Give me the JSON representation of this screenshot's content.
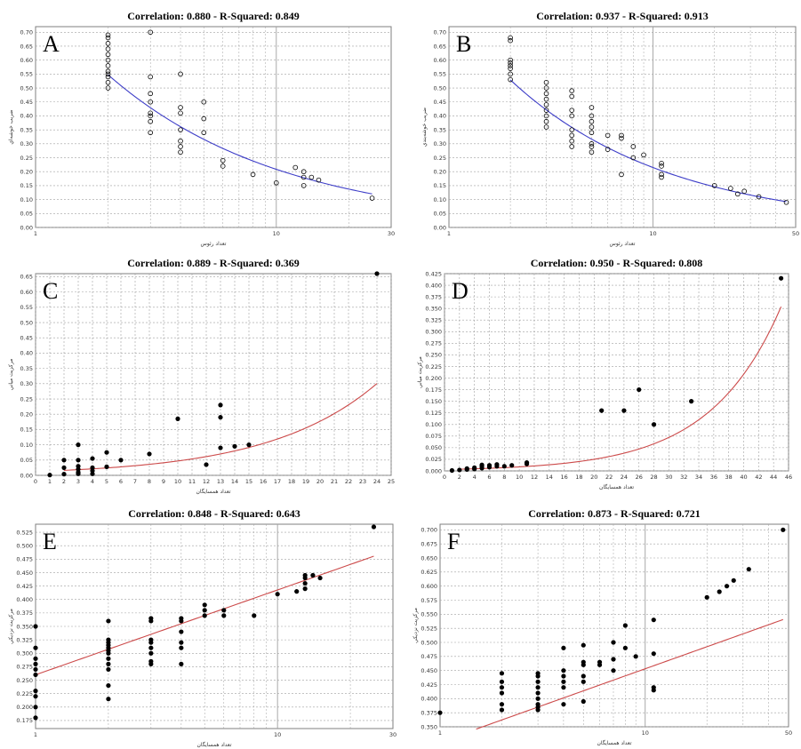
{
  "colors": {
    "fit_blue": "#3d3dc8",
    "fit_red": "#cc4a4a",
    "grid": "#a0a0a0",
    "marker": "#000000"
  },
  "chart_data": [
    {
      "panel": "A",
      "type": "scatter",
      "marker": "open",
      "fit_color": "#3d3dc8",
      "title": "Correlation: 0.880   -   R-Squared: 0.849",
      "xlabel": "تعداد رئوس",
      "ylabel": "ضريب خوشه‌اي",
      "xscale": "log",
      "xlim": [
        1,
        30
      ],
      "xticks": [
        1,
        10,
        30
      ],
      "ylim": [
        0,
        0.72
      ],
      "yticks": [
        0,
        0.05,
        0.1,
        0.15,
        0.2,
        0.25,
        0.3,
        0.35,
        0.4,
        0.45,
        0.5,
        0.55,
        0.6,
        0.65,
        0.7
      ],
      "ytick_decimals": 2,
      "points": [
        [
          2,
          0.5
        ],
        [
          2,
          0.52
        ],
        [
          2,
          0.54
        ],
        [
          2,
          0.55
        ],
        [
          2,
          0.56
        ],
        [
          2,
          0.58
        ],
        [
          2,
          0.6
        ],
        [
          2,
          0.62
        ],
        [
          2,
          0.64
        ],
        [
          2,
          0.66
        ],
        [
          2,
          0.68
        ],
        [
          2,
          0.69
        ],
        [
          3,
          0.7
        ],
        [
          3,
          0.54
        ],
        [
          3,
          0.48
        ],
        [
          3,
          0.45
        ],
        [
          3,
          0.41
        ],
        [
          3,
          0.4
        ],
        [
          3,
          0.38
        ],
        [
          3,
          0.34
        ],
        [
          4,
          0.55
        ],
        [
          4,
          0.43
        ],
        [
          4,
          0.41
        ],
        [
          4,
          0.35
        ],
        [
          4,
          0.31
        ],
        [
          4,
          0.29
        ],
        [
          4,
          0.27
        ],
        [
          5,
          0.45
        ],
        [
          5,
          0.39
        ],
        [
          5,
          0.34
        ],
        [
          6,
          0.24
        ],
        [
          6,
          0.22
        ],
        [
          8,
          0.19
        ],
        [
          10,
          0.16
        ],
        [
          12,
          0.215
        ],
        [
          13,
          0.2
        ],
        [
          13,
          0.18
        ],
        [
          13,
          0.15
        ],
        [
          14,
          0.18
        ],
        [
          15,
          0.17
        ],
        [
          25,
          0.105
        ]
      ],
      "fit": {
        "kind": "power",
        "a": 0.83,
        "b": -0.6,
        "x_from": 2,
        "x_to": 25
      }
    },
    {
      "panel": "B",
      "type": "scatter",
      "marker": "open",
      "fit_color": "#3d3dc8",
      "title": "Correlation: 0.937   -   R-Squared: 0.913",
      "xlabel": "تعداد رئوس",
      "ylabel": "ضريب خوشه‌بندي",
      "xscale": "log",
      "xlim": [
        1,
        50
      ],
      "xticks": [
        1,
        10,
        50
      ],
      "ylim": [
        0,
        0.72
      ],
      "yticks": [
        0,
        0.05,
        0.1,
        0.15,
        0.2,
        0.25,
        0.3,
        0.35,
        0.4,
        0.45,
        0.5,
        0.55,
        0.6,
        0.65,
        0.7
      ],
      "ytick_decimals": 2,
      "points": [
        [
          2,
          0.53
        ],
        [
          2,
          0.55
        ],
        [
          2,
          0.57
        ],
        [
          2,
          0.58
        ],
        [
          2,
          0.59
        ],
        [
          2,
          0.6
        ],
        [
          2,
          0.67
        ],
        [
          2,
          0.68
        ],
        [
          3,
          0.36
        ],
        [
          3,
          0.38
        ],
        [
          3,
          0.4
        ],
        [
          3,
          0.42
        ],
        [
          3,
          0.44
        ],
        [
          3,
          0.46
        ],
        [
          3,
          0.48
        ],
        [
          3,
          0.5
        ],
        [
          3,
          0.52
        ],
        [
          4,
          0.29
        ],
        [
          4,
          0.31
        ],
        [
          4,
          0.33
        ],
        [
          4,
          0.35
        ],
        [
          4,
          0.4
        ],
        [
          4,
          0.42
        ],
        [
          4,
          0.47
        ],
        [
          4,
          0.49
        ],
        [
          5,
          0.27
        ],
        [
          5,
          0.29
        ],
        [
          5,
          0.3
        ],
        [
          5,
          0.34
        ],
        [
          5,
          0.36
        ],
        [
          5,
          0.38
        ],
        [
          5,
          0.4
        ],
        [
          5,
          0.43
        ],
        [
          6,
          0.28
        ],
        [
          6,
          0.33
        ],
        [
          7,
          0.32
        ],
        [
          7,
          0.33
        ],
        [
          7,
          0.19
        ],
        [
          8,
          0.29
        ],
        [
          8,
          0.25
        ],
        [
          9,
          0.26
        ],
        [
          11,
          0.23
        ],
        [
          11,
          0.22
        ],
        [
          11,
          0.19
        ],
        [
          11,
          0.18
        ],
        [
          20,
          0.15
        ],
        [
          24,
          0.14
        ],
        [
          26,
          0.12
        ],
        [
          28,
          0.13
        ],
        [
          33,
          0.11
        ],
        [
          45,
          0.09
        ]
      ],
      "fit": {
        "kind": "power",
        "a": 0.78,
        "b": -0.56,
        "x_from": 2,
        "x_to": 45
      }
    },
    {
      "panel": "C",
      "type": "scatter",
      "marker": "filled",
      "fit_color": "#cc4a4a",
      "title": "Correlation: 0.889   -   R-Squared: 0.369",
      "xlabel": "تعداد همسايگان",
      "ylabel": "مرکزيت مياني",
      "xscale": "linear",
      "xlim": [
        0,
        25
      ],
      "xticks": [
        0,
        1,
        2,
        3,
        4,
        5,
        6,
        7,
        8,
        9,
        10,
        11,
        12,
        13,
        14,
        15,
        16,
        17,
        18,
        19,
        20,
        21,
        22,
        23,
        24,
        25
      ],
      "ylim": [
        0,
        0.66
      ],
      "yticks": [
        0,
        0.05,
        0.1,
        0.15,
        0.2,
        0.25,
        0.3,
        0.35,
        0.4,
        0.45,
        0.5,
        0.55,
        0.6,
        0.65
      ],
      "ytick_decimals": 2,
      "points": [
        [
          1,
          0.001
        ],
        [
          2,
          0.004
        ],
        [
          2,
          0.025
        ],
        [
          2,
          0.05
        ],
        [
          3,
          0.005
        ],
        [
          3,
          0.01
        ],
        [
          3,
          0.02
        ],
        [
          3,
          0.03
        ],
        [
          3,
          0.05
        ],
        [
          3,
          0.1
        ],
        [
          4,
          0.005
        ],
        [
          4,
          0.015
        ],
        [
          4,
          0.025
        ],
        [
          4,
          0.055
        ],
        [
          5,
          0.028
        ],
        [
          5,
          0.075
        ],
        [
          6,
          0.05
        ],
        [
          8,
          0.07
        ],
        [
          10,
          0.185
        ],
        [
          12,
          0.035
        ],
        [
          13,
          0.09
        ],
        [
          13,
          0.19
        ],
        [
          13,
          0.23
        ],
        [
          14,
          0.095
        ],
        [
          15,
          0.1
        ],
        [
          24,
          0.66
        ]
      ],
      "fit": {
        "kind": "exp",
        "a": 0.0125,
        "b": 0.1325,
        "x_from": 2,
        "x_to": 24
      }
    },
    {
      "panel": "D",
      "type": "scatter",
      "marker": "filled",
      "fit_color": "#cc4a4a",
      "title": "Correlation: 0.950   -   R-Squared: 0.808",
      "xlabel": "تعداد همسايگان",
      "ylabel": "مرکزيت مياني",
      "xscale": "linear",
      "xlim": [
        0,
        46
      ],
      "xticks": [
        0,
        2,
        4,
        6,
        8,
        10,
        12,
        14,
        16,
        18,
        20,
        22,
        24,
        26,
        28,
        30,
        32,
        34,
        36,
        38,
        40,
        42,
        44,
        46
      ],
      "ylim": [
        0,
        0.425
      ],
      "yticks": [
        0,
        0.025,
        0.05,
        0.075,
        0.1,
        0.125,
        0.15,
        0.175,
        0.2,
        0.225,
        0.25,
        0.275,
        0.3,
        0.325,
        0.35,
        0.375,
        0.4,
        0.425
      ],
      "ytick_decimals": 3,
      "points": [
        [
          1,
          0.001
        ],
        [
          2,
          0.002
        ],
        [
          3,
          0.003
        ],
        [
          3,
          0.005
        ],
        [
          4,
          0.004
        ],
        [
          4,
          0.007
        ],
        [
          5,
          0.006
        ],
        [
          5,
          0.01
        ],
        [
          5,
          0.013
        ],
        [
          6,
          0.008
        ],
        [
          6,
          0.012
        ],
        [
          7,
          0.01
        ],
        [
          7,
          0.014
        ],
        [
          8,
          0.01
        ],
        [
          9,
          0.012
        ],
        [
          11,
          0.015
        ],
        [
          11,
          0.018
        ],
        [
          21,
          0.13
        ],
        [
          24,
          0.13
        ],
        [
          26,
          0.175
        ],
        [
          28,
          0.1
        ],
        [
          33,
          0.15
        ],
        [
          45,
          0.415
        ]
      ],
      "fit": {
        "kind": "exp",
        "a": 0.003,
        "b": 0.106,
        "x_from": 2,
        "x_to": 45
      }
    },
    {
      "panel": "E",
      "type": "scatter",
      "marker": "filled",
      "fit_color": "#cc4a4a",
      "title": "Correlation: 0.848   -   R-Squared: 0.643",
      "xlabel": "تعداد همسايگان",
      "ylabel": "مرکزيت نزديکي",
      "xscale": "log",
      "xlim": [
        1,
        30
      ],
      "xticks": [
        1,
        10,
        30
      ],
      "ylim": [
        0.16,
        0.54
      ],
      "yticks": [
        0.175,
        0.2,
        0.225,
        0.25,
        0.275,
        0.3,
        0.325,
        0.35,
        0.375,
        0.4,
        0.425,
        0.45,
        0.475,
        0.5,
        0.525
      ],
      "ytick_decimals": 3,
      "points": [
        [
          1,
          0.18
        ],
        [
          1,
          0.2
        ],
        [
          1,
          0.22
        ],
        [
          1,
          0.23
        ],
        [
          1,
          0.26
        ],
        [
          1,
          0.27
        ],
        [
          1,
          0.28
        ],
        [
          1,
          0.29
        ],
        [
          1,
          0.31
        ],
        [
          1,
          0.35
        ],
        [
          2,
          0.215
        ],
        [
          2,
          0.24
        ],
        [
          2,
          0.27
        ],
        [
          2,
          0.28
        ],
        [
          2,
          0.29
        ],
        [
          2,
          0.3
        ],
        [
          2,
          0.305
        ],
        [
          2,
          0.31
        ],
        [
          2,
          0.315
        ],
        [
          2,
          0.32
        ],
        [
          2,
          0.325
        ],
        [
          2,
          0.36
        ],
        [
          3,
          0.28
        ],
        [
          3,
          0.285
        ],
        [
          3,
          0.3
        ],
        [
          3,
          0.31
        ],
        [
          3,
          0.32
        ],
        [
          3,
          0.325
        ],
        [
          3,
          0.36
        ],
        [
          3,
          0.365
        ],
        [
          4,
          0.28
        ],
        [
          4,
          0.31
        ],
        [
          4,
          0.32
        ],
        [
          4,
          0.34
        ],
        [
          4,
          0.36
        ],
        [
          4,
          0.365
        ],
        [
          5,
          0.37
        ],
        [
          5,
          0.38
        ],
        [
          5,
          0.39
        ],
        [
          6,
          0.37
        ],
        [
          6,
          0.38
        ],
        [
          8,
          0.37
        ],
        [
          10,
          0.41
        ],
        [
          12,
          0.415
        ],
        [
          13,
          0.42
        ],
        [
          13,
          0.43
        ],
        [
          13,
          0.44
        ],
        [
          13,
          0.445
        ],
        [
          14,
          0.445
        ],
        [
          15,
          0.44
        ],
        [
          25,
          0.535
        ]
      ],
      "fit": {
        "kind": "linlog",
        "a": 0.26,
        "b": 0.0685,
        "x_from": 1,
        "x_to": 25
      }
    },
    {
      "panel": "F",
      "type": "scatter",
      "marker": "filled",
      "fit_color": "#cc4a4a",
      "title": "Correlation: 0.873   -   R-Squared: 0.721",
      "xlabel": "تعداد همسايگان",
      "ylabel": "مرکزيت نزديکي",
      "xscale": "log",
      "xlim": [
        1,
        50
      ],
      "xticks": [
        1,
        10,
        50
      ],
      "ylim": [
        0.35,
        0.71
      ],
      "yticks": [
        0.35,
        0.375,
        0.4,
        0.425,
        0.45,
        0.475,
        0.5,
        0.525,
        0.55,
        0.575,
        0.6,
        0.625,
        0.65,
        0.675,
        0.7
      ],
      "ytick_decimals": 3,
      "points": [
        [
          1,
          0.375
        ],
        [
          2,
          0.38
        ],
        [
          2,
          0.39
        ],
        [
          2,
          0.41
        ],
        [
          2,
          0.42
        ],
        [
          2,
          0.43
        ],
        [
          2,
          0.445
        ],
        [
          3,
          0.38
        ],
        [
          3,
          0.385
        ],
        [
          3,
          0.39
        ],
        [
          3,
          0.4
        ],
        [
          3,
          0.41
        ],
        [
          3,
          0.42
        ],
        [
          3,
          0.43
        ],
        [
          3,
          0.44
        ],
        [
          3,
          0.445
        ],
        [
          4,
          0.39
        ],
        [
          4,
          0.42
        ],
        [
          4,
          0.43
        ],
        [
          4,
          0.44
        ],
        [
          4,
          0.45
        ],
        [
          4,
          0.49
        ],
        [
          5,
          0.395
        ],
        [
          5,
          0.43
        ],
        [
          5,
          0.44
        ],
        [
          5,
          0.46
        ],
        [
          5,
          0.465
        ],
        [
          5,
          0.495
        ],
        [
          6,
          0.46
        ],
        [
          6,
          0.465
        ],
        [
          7,
          0.45
        ],
        [
          7,
          0.47
        ],
        [
          7,
          0.5
        ],
        [
          8,
          0.49
        ],
        [
          8,
          0.53
        ],
        [
          9,
          0.475
        ],
        [
          11,
          0.415
        ],
        [
          11,
          0.42
        ],
        [
          11,
          0.48
        ],
        [
          11,
          0.54
        ],
        [
          20,
          0.58
        ],
        [
          23,
          0.59
        ],
        [
          25,
          0.6
        ],
        [
          27,
          0.61
        ],
        [
          32,
          0.63
        ],
        [
          47,
          0.7
        ]
      ],
      "fit": {
        "kind": "linlog",
        "a": 0.323,
        "b": 0.0565,
        "x_from": 1.5,
        "x_to": 47
      }
    }
  ]
}
